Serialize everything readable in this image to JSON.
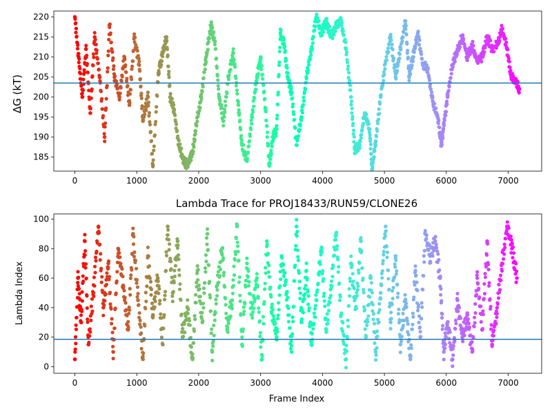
{
  "chart_data": [
    {
      "type": "scatter",
      "title": "",
      "xlabel": "",
      "ylabel": "ΔG (kT)",
      "xlim": [
        -340,
        7540
      ],
      "ylim": [
        181.5,
        221.5
      ],
      "xticks": [
        0,
        1000,
        2000,
        3000,
        4000,
        5000,
        6000,
        7000
      ],
      "yticks": [
        185,
        190,
        195,
        200,
        205,
        210,
        215,
        220
      ],
      "hline": 203.5,
      "colormap": "rainbow",
      "grid": false,
      "series": [
        {
          "x": [
            0,
            60,
            120,
            180,
            250,
            320,
            400,
            480,
            560,
            640,
            720,
            800,
            880,
            960,
            1040,
            1100,
            1180,
            1260,
            1350,
            1420,
            1480,
            1540,
            1600,
            1680,
            1760,
            1820,
            1900,
            1960,
            2040,
            2120,
            2200,
            2260,
            2330,
            2400,
            2480,
            2560,
            2640,
            2700,
            2780,
            2860,
            2940,
            3000,
            3080,
            3140,
            3200,
            3260,
            3320,
            3380,
            3440,
            3500,
            3580,
            3660,
            3740,
            3820,
            3900,
            3980,
            4060,
            4140,
            4220,
            4300,
            4380,
            4460,
            4520,
            4600,
            4680,
            4760,
            4800,
            4860,
            4940,
            5020,
            5100,
            5180,
            5260,
            5340,
            5400,
            5460,
            5540,
            5620,
            5700,
            5780,
            5860,
            5920,
            5960,
            6020,
            6100,
            6180,
            6260,
            6340,
            6420,
            6500,
            6580,
            6660,
            6740,
            6820,
            6900,
            6980,
            7050,
            7120,
            7180
          ],
          "y": [
            220,
            210,
            200,
            212,
            196,
            215,
            205,
            190,
            218,
            205,
            200,
            210,
            198,
            215,
            208,
            194,
            200,
            183,
            206,
            211,
            215,
            200,
            197,
            188,
            184,
            183,
            186,
            193,
            200,
            210,
            218,
            214,
            200,
            194,
            205,
            211,
            198,
            188,
            184,
            195,
            205,
            210,
            197,
            183,
            190,
            192,
            216,
            213,
            205,
            201,
            188,
            195,
            205,
            212,
            220,
            216,
            219,
            215,
            218,
            219,
            212,
            200,
            187,
            188,
            196,
            192,
            182,
            189,
            200,
            209,
            215,
            205,
            212,
            219,
            205,
            210,
            216,
            208,
            207,
            199,
            195,
            188,
            193,
            200,
            208,
            212,
            215,
            210,
            213,
            209,
            210,
            215,
            212,
            213,
            217,
            212,
            205,
            204,
            202
          ]
        }
      ]
    },
    {
      "type": "scatter",
      "title": "Lambda Trace for PROJ18433/RUN59/CLONE26",
      "xlabel": "Frame Index",
      "ylabel": "Lambda Index",
      "xlim": [
        -340,
        7540
      ],
      "ylim": [
        -4.5,
        103.5
      ],
      "xticks": [
        0,
        1000,
        2000,
        3000,
        4000,
        5000,
        6000,
        7000
      ],
      "yticks": [
        0,
        20,
        40,
        60,
        80,
        100
      ],
      "hline": 18.5,
      "colormap": "rainbow",
      "grid": false,
      "series": [
        {
          "x": [
            0,
            50,
            100,
            160,
            220,
            300,
            380,
            460,
            540,
            620,
            700,
            780,
            860,
            940,
            1020,
            1100,
            1180,
            1260,
            1340,
            1420,
            1500,
            1580,
            1660,
            1740,
            1820,
            1900,
            1980,
            2060,
            2140,
            2220,
            2300,
            2380,
            2460,
            2540,
            2620,
            2700,
            2780,
            2860,
            2940,
            3020,
            3100,
            3180,
            3260,
            3340,
            3420,
            3500,
            3580,
            3660,
            3740,
            3820,
            3900,
            3980,
            4060,
            4140,
            4220,
            4300,
            4380,
            4460,
            4540,
            4620,
            4700,
            4780,
            4860,
            4940,
            5020,
            5100,
            5180,
            5260,
            5340,
            5420,
            5500,
            5580,
            5660,
            5740,
            5820,
            5900,
            5960,
            6020,
            6100,
            6180,
            6260,
            6340,
            6420,
            6500,
            6580,
            6660,
            6740,
            6820,
            6900,
            6980,
            7060,
            7140
          ],
          "y": [
            5,
            60,
            30,
            85,
            15,
            50,
            95,
            40,
            70,
            10,
            80,
            55,
            25,
            90,
            45,
            5,
            75,
            35,
            60,
            15,
            95,
            50,
            85,
            20,
            40,
            5,
            65,
            30,
            90,
            10,
            55,
            80,
            25,
            45,
            95,
            15,
            70,
            35,
            60,
            5,
            85,
            40,
            20,
            75,
            50,
            10,
            95,
            30,
            65,
            15,
            45,
            80,
            25,
            55,
            90,
            35,
            5,
            70,
            40,
            85,
            20,
            60,
            10,
            50,
            95,
            30,
            75,
            15,
            45,
            5,
            65,
            20,
            90,
            75,
            85,
            60,
            10,
            30,
            5,
            45,
            20,
            35,
            10,
            60,
            25,
            85,
            15,
            40,
            70,
            95,
            80,
            60
          ]
        }
      ]
    }
  ]
}
